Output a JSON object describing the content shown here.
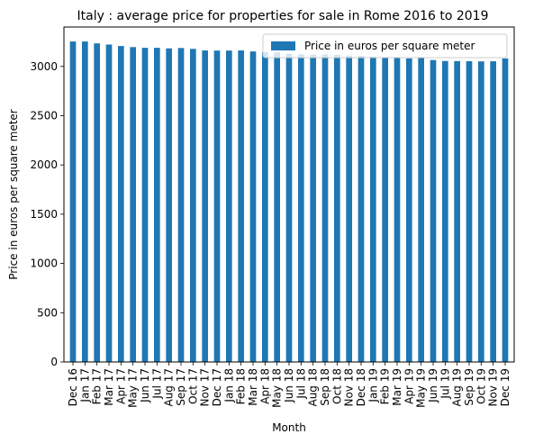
{
  "chart_data": {
    "type": "bar",
    "title": "Italy : average price for properties for sale in Rome 2016 to 2019",
    "xlabel": "Month",
    "ylabel": "Price in euros per square meter",
    "ylim": [
      0,
      3400
    ],
    "yticks": [
      0,
      500,
      1000,
      1500,
      2000,
      2500,
      3000
    ],
    "grid": false,
    "legend_position": "top-right",
    "color": "#1f77b4",
    "categories": [
      "Dec 16",
      "Jan 17",
      "Feb 17",
      "Mar 17",
      "Apr 17",
      "May 17",
      "Jun 17",
      "Jul 17",
      "Aug 17",
      "Sep 17",
      "Oct 17",
      "Nov 17",
      "Dec 17",
      "Jan 18",
      "Feb 18",
      "Mar 18",
      "Apr 18",
      "May 18",
      "Jun 18",
      "Jul 18",
      "Aug 18",
      "Sep 18",
      "Oct 18",
      "Nov 18",
      "Dec 18",
      "Jan 19",
      "Feb 19",
      "Mar 19",
      "Apr 19",
      "May 19",
      "Jun 19",
      "Jul 19",
      "Aug 19",
      "Sep 19",
      "Oct 19",
      "Nov 19",
      "Dec 19"
    ],
    "series": [
      {
        "name": "Price in euros per square meter",
        "values": [
          3253,
          3253,
          3234,
          3222,
          3207,
          3196,
          3189,
          3189,
          3183,
          3187,
          3178,
          3162,
          3161,
          3161,
          3162,
          3152,
          3144,
          3143,
          3128,
          3123,
          3121,
          3122,
          3118,
          3110,
          3108,
          3100,
          3093,
          3090,
          3081,
          3090,
          3065,
          3055,
          3054,
          3053,
          3051,
          3052,
          3081
        ]
      }
    ]
  }
}
